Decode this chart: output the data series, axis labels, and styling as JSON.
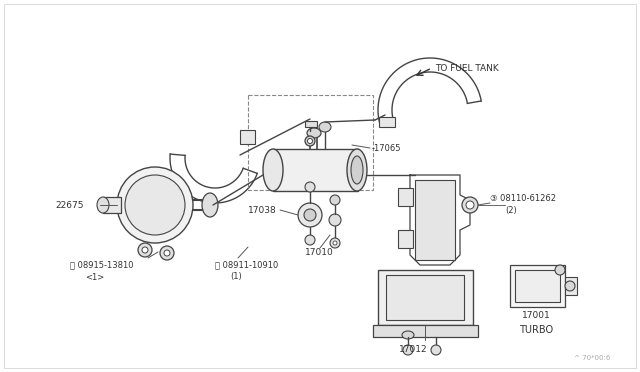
{
  "bg_color": "#ffffff",
  "line_color": "#444444",
  "text_color": "#333333",
  "fig_width": 6.4,
  "fig_height": 3.72,
  "dpi": 100,
  "watermark": "^ 70*00:6"
}
